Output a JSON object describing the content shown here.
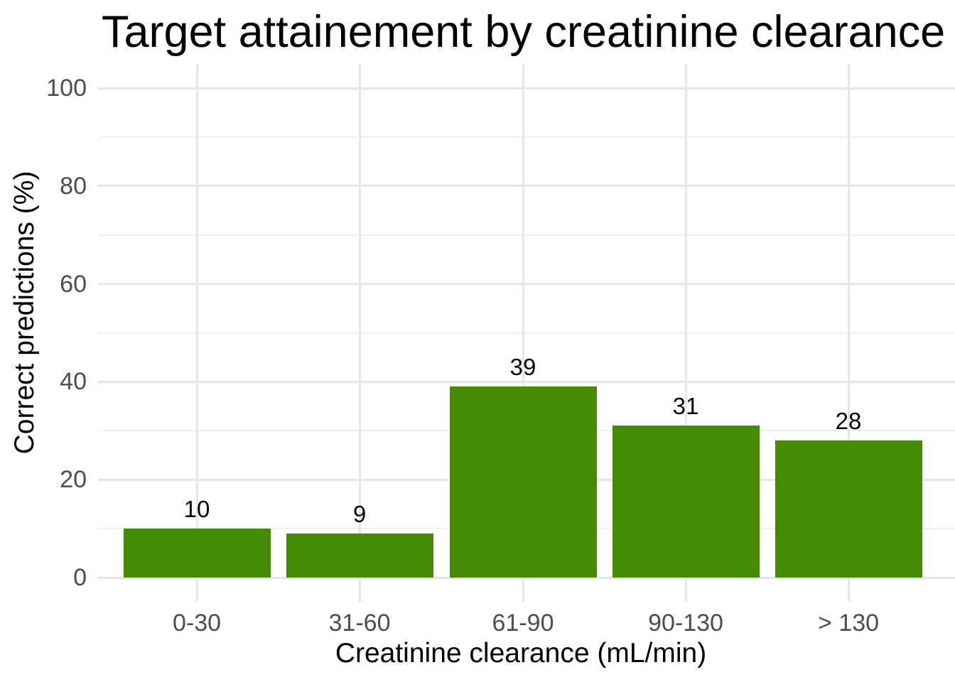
{
  "chart_data": {
    "type": "bar",
    "title": "Target attainement by creatinine clearance",
    "xlabel": "Creatinine clearance (mL/min)",
    "ylabel": "Correct predictions (%)",
    "categories": [
      "0-30",
      "31-60",
      "61-90",
      "90-130",
      "> 130"
    ],
    "values": [
      10,
      9,
      39,
      31,
      28
    ],
    "bar_labels": [
      "10",
      "9",
      "39",
      "31",
      "28"
    ],
    "y_ticks": [
      0,
      20,
      40,
      60,
      80,
      100
    ],
    "y_minor_ticks": [
      10,
      30,
      50,
      70,
      90
    ],
    "ylim": [
      0,
      100
    ],
    "grid": "major and minor horizontal, major vertical at category centers",
    "legend": "none",
    "colors": {
      "bar": "#458B02",
      "grid_major": "#E6E6E6",
      "grid_minor": "#F0F0F0",
      "tick_label": "#4D4D4D",
      "text": "#000000",
      "background": "#FFFFFF"
    }
  }
}
